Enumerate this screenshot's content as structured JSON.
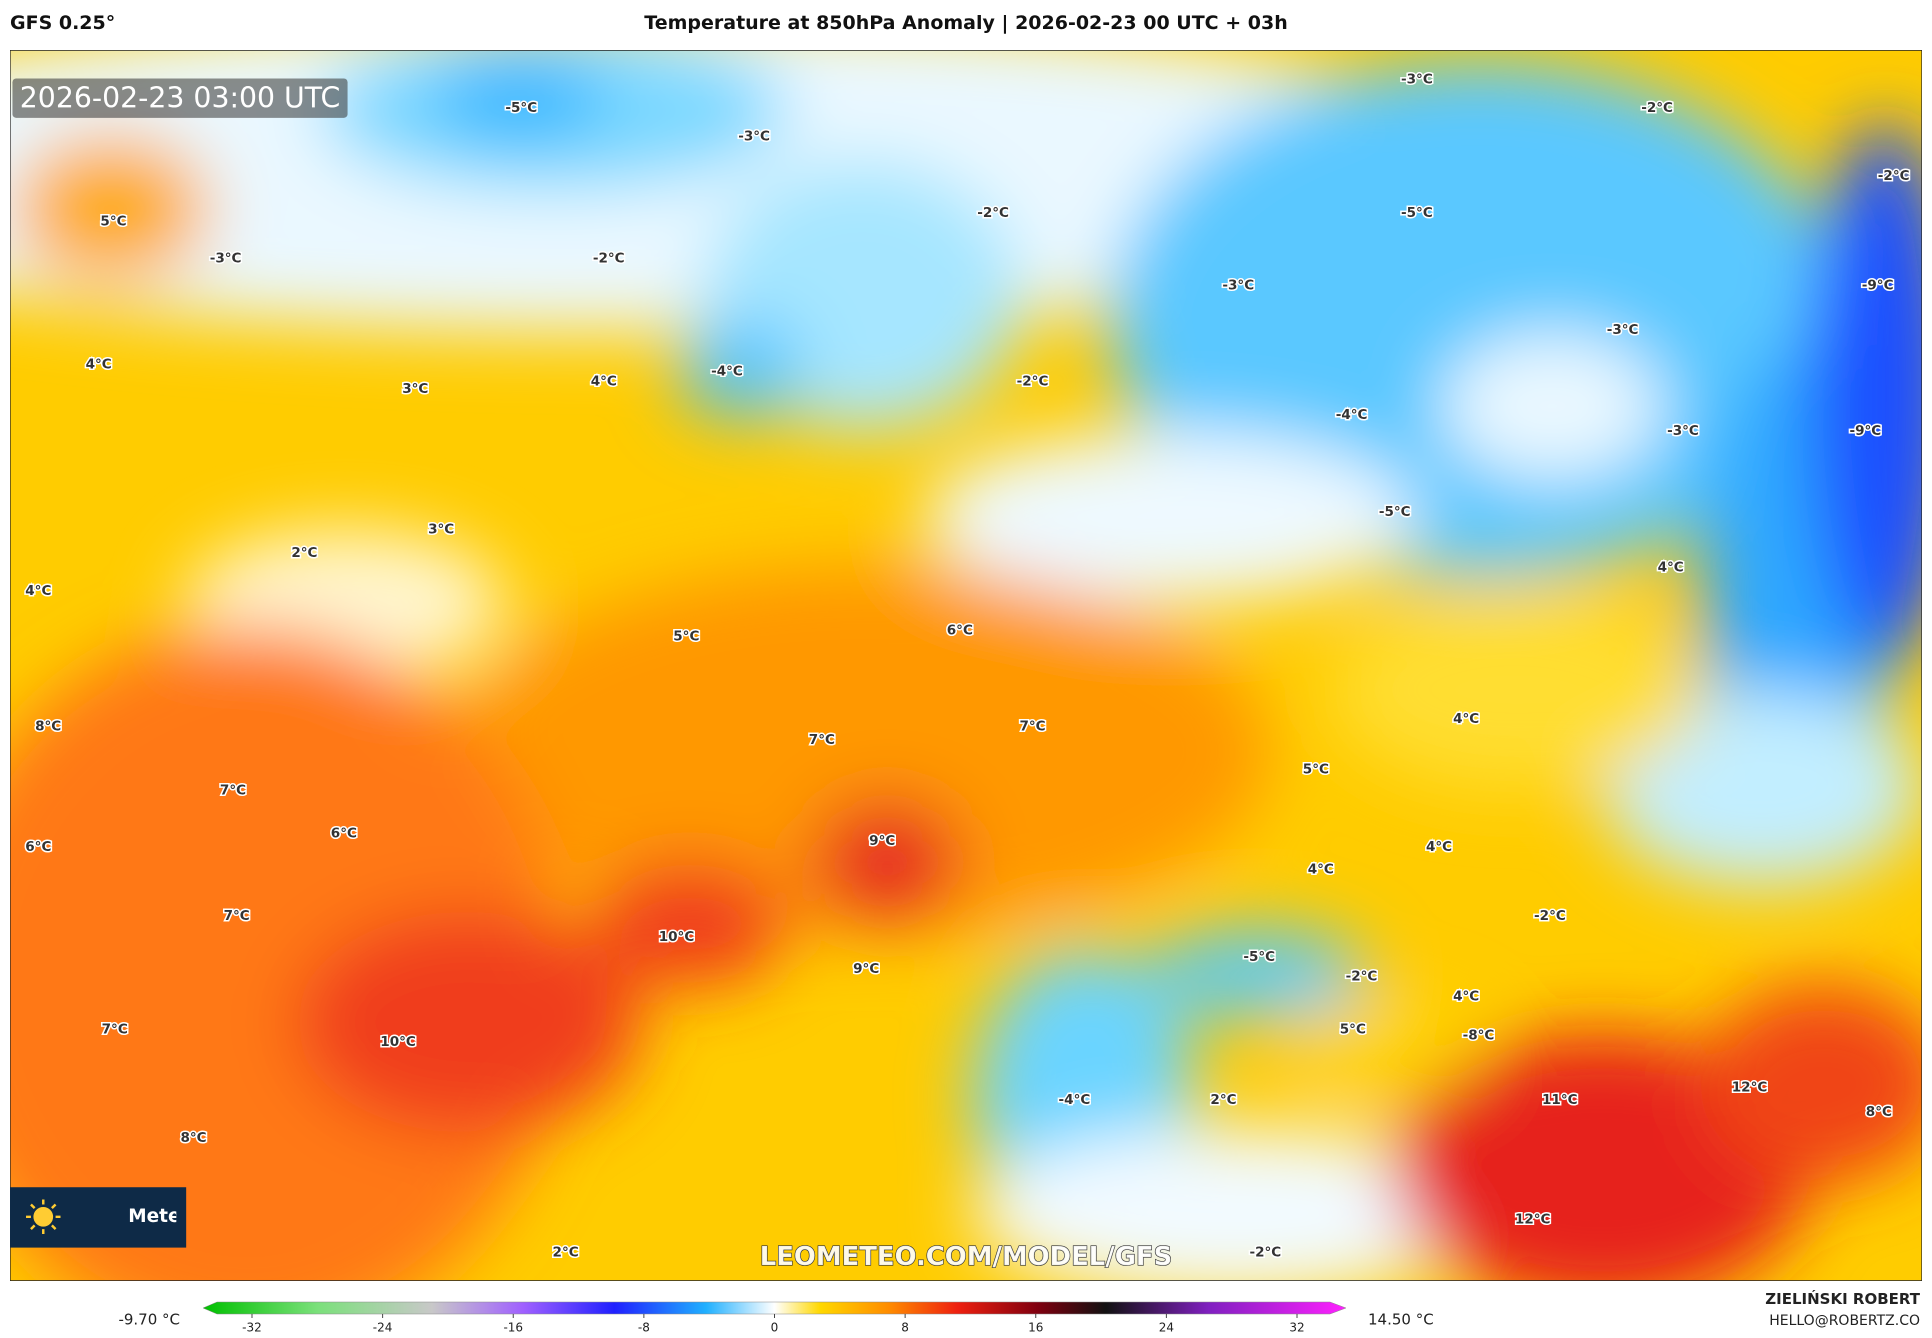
{
  "header": {
    "model": "GFS 0.25°",
    "title": "Temperature at 850hPa Anomaly | 2026-02-23 00 UTC + 03h"
  },
  "map": {
    "timestamp": "2026-02-23 03:00 UTC",
    "watermark": "LEOMETEO.COM/MODEL/GFS",
    "logo": "Meteo",
    "labels": [
      "-5°C",
      "-3°C",
      "5°C",
      "-3°C",
      "-2°C",
      "-2°C",
      "-3°C",
      "-2°C",
      "-2°C",
      "-5°C",
      "-3°C",
      "-9°C",
      "-3°C",
      "-4°C",
      "4°C",
      "3°C",
      "4°C",
      "-2°C",
      "-4°C",
      "-3°C",
      "-9°C",
      "-5°C",
      "3°C",
      "2°C",
      "4°C",
      "4°C",
      "5°C",
      "6°C",
      "4°C",
      "8°C",
      "7°C",
      "7°C",
      "5°C",
      "7°C",
      "6°C",
      "6°C",
      "9°C",
      "4°C",
      "4°C",
      "7°C",
      "-2°C",
      "10°C",
      "-5°C",
      "9°C",
      "-2°C",
      "4°C",
      "7°C",
      "5°C",
      "-8°C",
      "10°C",
      "11°C",
      "12°C",
      "-4°C",
      "2°C",
      "8°C",
      "8°C",
      "12°C",
      "2°C",
      "-2°C"
    ]
  },
  "colorbar": {
    "min_label": "-9.70 °C",
    "max_label": "14.50 °C",
    "lim": [
      -35,
      35
    ],
    "ticks": [
      -32,
      -24,
      -16,
      -8,
      0,
      8,
      16,
      24,
      32
    ]
  },
  "credits": {
    "author": "ZIELIŃSKI ROBERT",
    "email": "HELLO@ROBERTZ.CO"
  }
}
